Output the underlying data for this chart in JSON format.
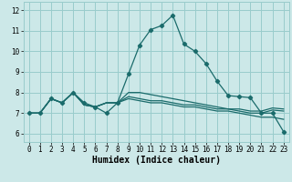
{
  "xlabel": "Humidex (Indice chaleur)",
  "background_color": "#cce8e8",
  "grid_color": "#99cccc",
  "line_color": "#1a6b6b",
  "x_ticks": [
    0,
    1,
    2,
    3,
    4,
    5,
    6,
    7,
    8,
    9,
    10,
    11,
    12,
    13,
    14,
    15,
    16,
    17,
    18,
    19,
    20,
    21,
    22,
    23
  ],
  "y_ticks": [
    6,
    7,
    8,
    9,
    10,
    11,
    12
  ],
  "xlim": [
    -0.5,
    23.5
  ],
  "ylim": [
    5.6,
    12.4
  ],
  "series": [
    [
      7.0,
      7.0,
      7.7,
      7.5,
      8.0,
      7.5,
      7.3,
      7.0,
      7.5,
      8.9,
      10.3,
      11.05,
      11.25,
      11.75,
      10.35,
      10.0,
      9.4,
      8.55,
      7.85,
      7.8,
      7.75,
      7.0,
      7.0,
      6.1
    ],
    [
      7.0,
      7.0,
      7.7,
      7.5,
      8.0,
      7.4,
      7.3,
      7.5,
      7.5,
      8.0,
      8.0,
      7.9,
      7.8,
      7.7,
      7.6,
      7.5,
      7.4,
      7.3,
      7.2,
      7.2,
      7.1,
      7.1,
      7.25,
      7.2
    ],
    [
      7.0,
      7.0,
      7.7,
      7.5,
      8.0,
      7.4,
      7.3,
      7.5,
      7.5,
      7.8,
      7.7,
      7.6,
      7.6,
      7.5,
      7.4,
      7.4,
      7.3,
      7.2,
      7.2,
      7.1,
      7.0,
      7.0,
      7.15,
      7.1
    ],
    [
      7.0,
      7.0,
      7.7,
      7.5,
      8.0,
      7.4,
      7.3,
      7.5,
      7.5,
      7.7,
      7.6,
      7.5,
      7.5,
      7.4,
      7.3,
      7.3,
      7.2,
      7.1,
      7.1,
      7.0,
      6.9,
      6.8,
      6.8,
      6.7
    ]
  ],
  "marker_series": [
    0
  ],
  "marker": "D",
  "marker_size": 2.2,
  "tick_fontsize": 5.5,
  "xlabel_fontsize": 7.0
}
